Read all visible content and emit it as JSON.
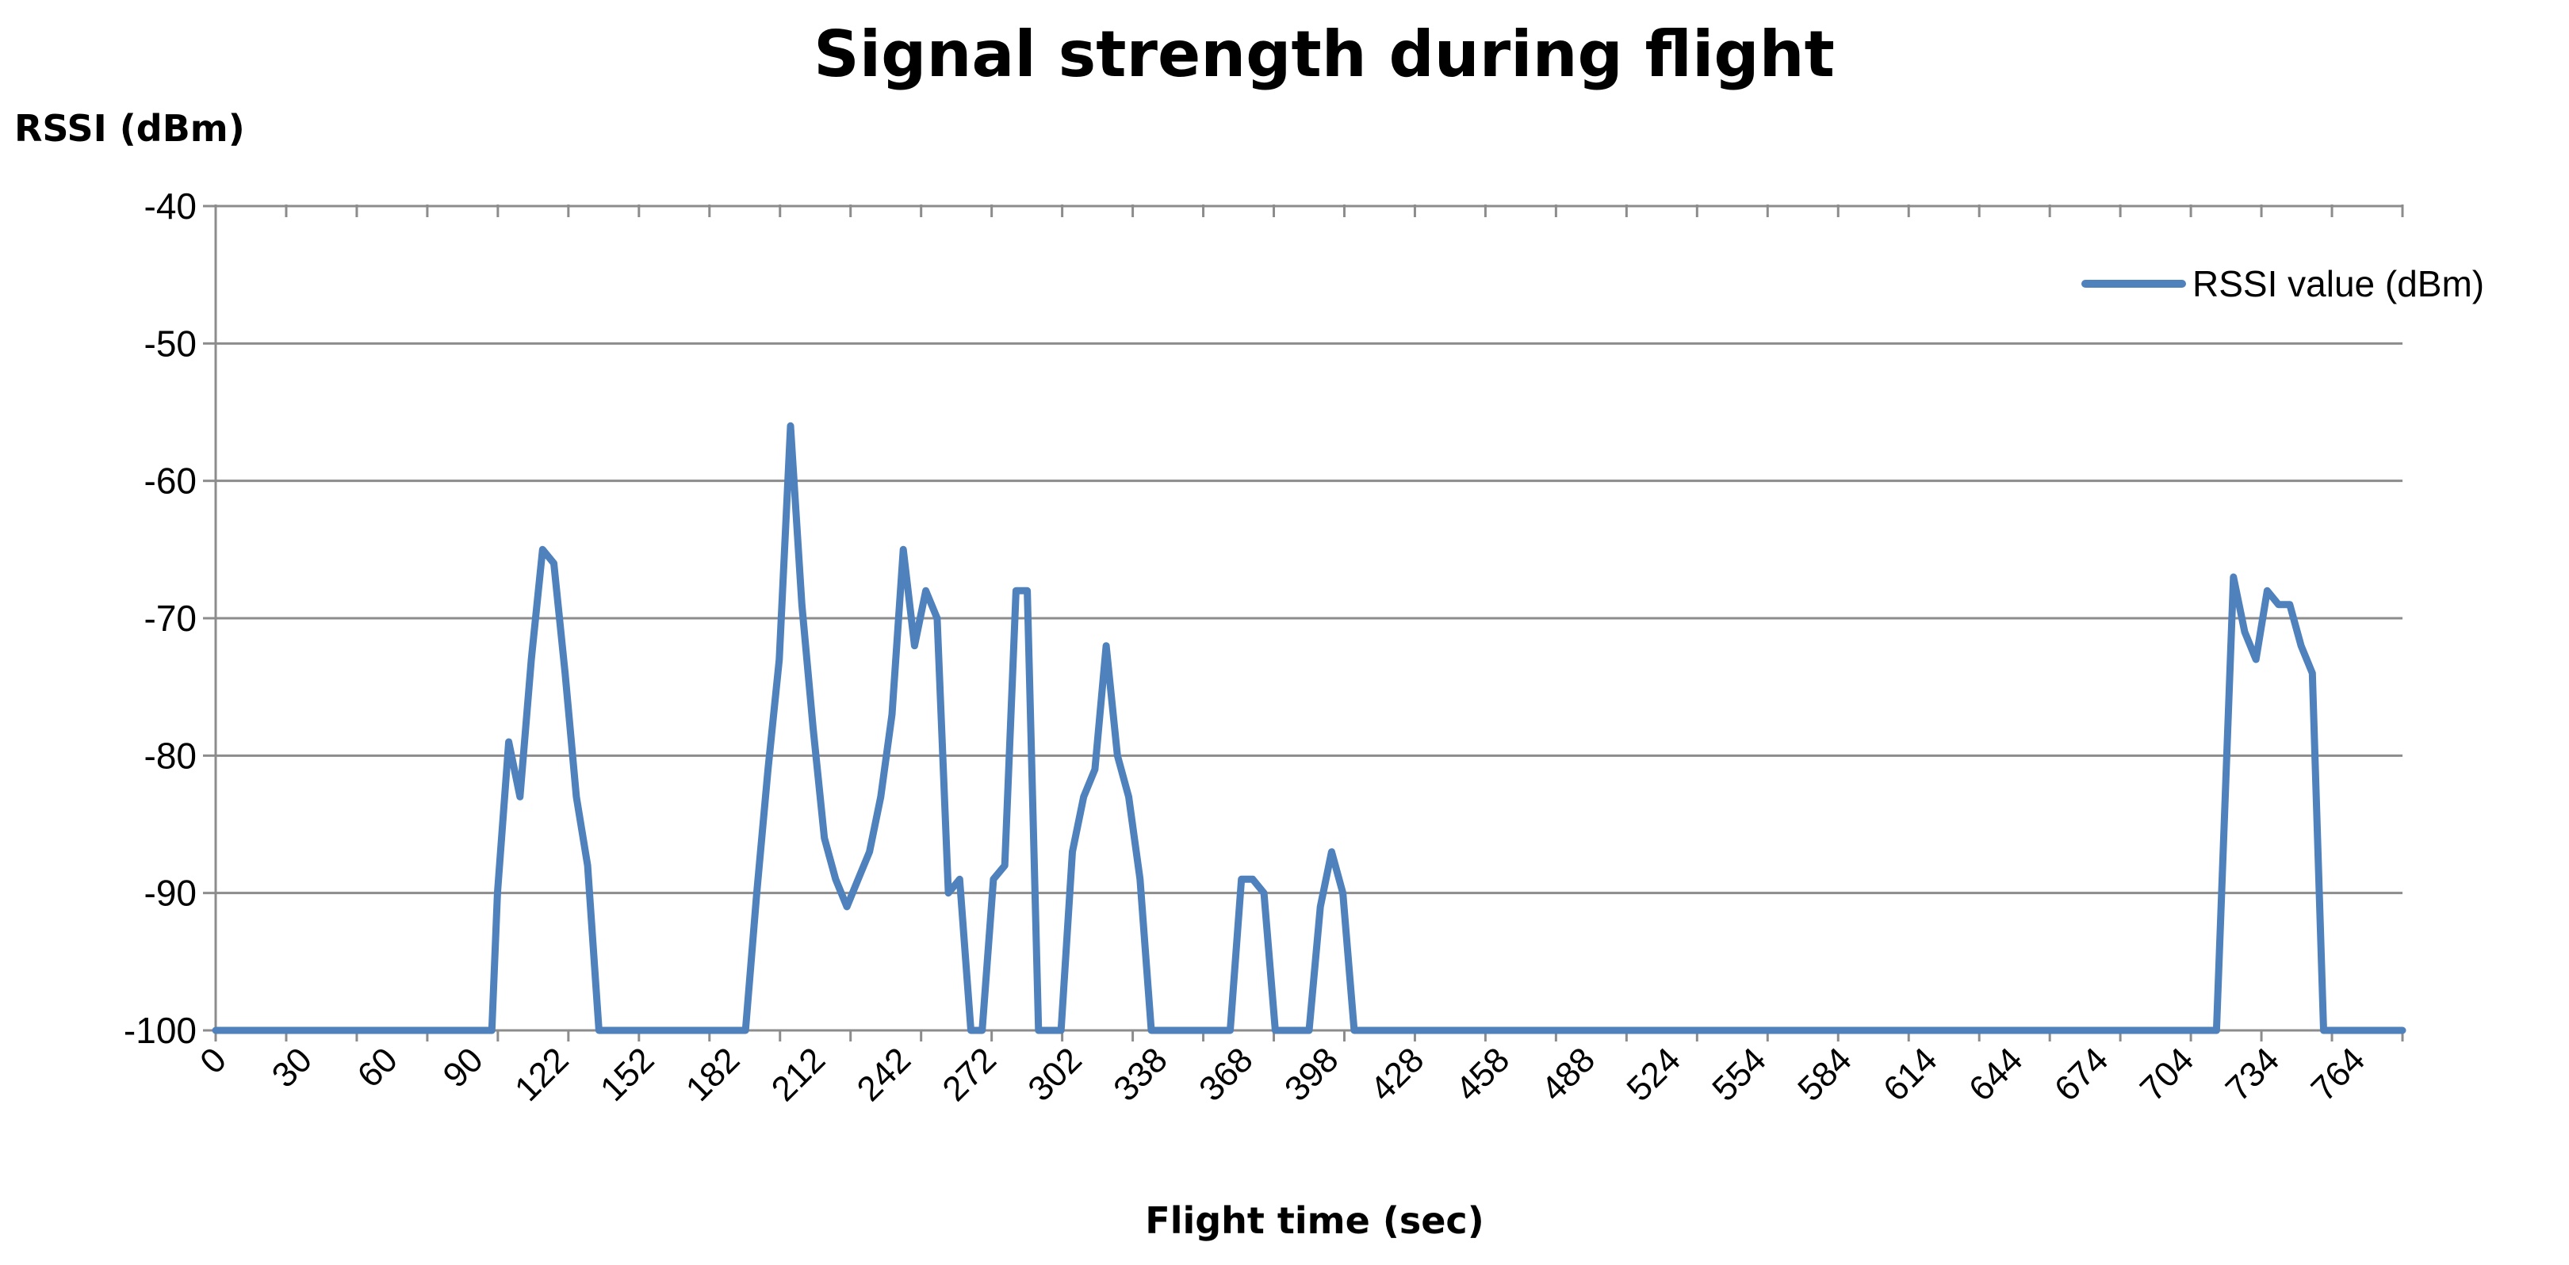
{
  "chart_data": {
    "type": "line",
    "title": "Signal strength during flight",
    "ylabel": "RSSI (dBm)",
    "xlabel": "Flight time (sec)",
    "ylim": [
      -100,
      -40
    ],
    "yticks": [
      "-40",
      "-50",
      "-60",
      "-70",
      "-80",
      "-90",
      "-100"
    ],
    "ytick_values": [
      -40,
      -50,
      -60,
      -70,
      -80,
      -90,
      -100
    ],
    "grid": true,
    "legend_position": "top-right",
    "color": "#4f81bd",
    "xtick_labels": [
      "0",
      "30",
      "60",
      "90",
      "122",
      "152",
      "182",
      "212",
      "242",
      "272",
      "302",
      "338",
      "368",
      "398",
      "428",
      "458",
      "488",
      "524",
      "554",
      "584",
      "614",
      "644",
      "674",
      "704",
      "734",
      "764"
    ],
    "series": [
      {
        "name": "RSSI value (dBm)",
        "x": [
          0,
          10,
          20,
          30,
          40,
          50,
          60,
          70,
          80,
          90,
          96,
          98,
          100,
          104,
          108,
          112,
          116,
          120,
          124,
          128,
          132,
          136,
          140,
          144,
          148,
          152,
          156,
          160,
          168,
          176,
          184,
          188,
          192,
          196,
          200,
          204,
          208,
          212,
          216,
          220,
          224,
          228,
          232,
          236,
          240,
          244,
          248,
          252,
          256,
          260,
          264,
          268,
          272,
          276,
          280,
          284,
          288,
          292,
          296,
          300,
          304,
          308,
          312,
          316,
          320,
          324,
          328,
          332,
          336,
          340,
          344,
          348,
          352,
          356,
          360,
          364,
          368,
          372,
          376,
          380,
          384,
          388,
          392,
          396,
          400,
          404,
          408,
          412,
          420,
          430,
          440,
          450,
          452,
          456,
          460,
          464,
          468,
          472,
          476,
          480,
          484,
          488,
          492,
          496,
          500,
          504,
          508,
          512,
          516,
          520,
          524,
          528,
          540,
          560,
          580,
          600,
          620,
          640,
          660,
          680,
          700,
          710,
          716,
          720,
          724,
          728,
          732,
          736,
          740,
          744,
          748,
          752,
          756,
          760,
          764,
          768,
          772,
          776
        ],
        "y": [
          -100,
          -100,
          -100,
          -100,
          -100,
          -100,
          -100,
          -100,
          -100,
          -100,
          -100,
          -100,
          -90,
          -79,
          -83,
          -73,
          -65,
          -66,
          -74,
          -83,
          -88,
          -100,
          -100,
          -100,
          -100,
          -100,
          -100,
          -100,
          -100,
          -100,
          -100,
          -100,
          -90,
          -81,
          -73,
          -56,
          -69,
          -78,
          -86,
          -89,
          -91,
          -89,
          -87,
          -83,
          -77,
          -65,
          -72,
          -68,
          -70,
          -90,
          -89,
          -100,
          -100,
          -89,
          -88,
          -68,
          -68,
          -100,
          -100,
          -100,
          -87,
          -83,
          -81,
          -72,
          -80,
          -83,
          -89,
          -100,
          -100,
          -100,
          -100,
          -100,
          -100,
          -100,
          -100,
          -89,
          -89,
          -90,
          -100,
          -100,
          -100,
          -100,
          -91,
          -87,
          -90,
          -100,
          -100,
          -100,
          -100,
          -100,
          -100,
          -100,
          -100,
          -100,
          -100,
          -100,
          -100,
          -100,
          -100,
          -100,
          -100,
          -100,
          -100,
          -100,
          -100,
          -100,
          -100,
          -100,
          -100,
          -100,
          -100,
          -100,
          -100,
          -100,
          -100,
          -100,
          -100,
          -100,
          -100,
          -100,
          -100,
          -100,
          -67,
          -71,
          -73,
          -68,
          -69,
          -69,
          -72,
          -74,
          -100,
          -100,
          -100,
          -100,
          -100,
          -100,
          -100,
          -100
        ]
      }
    ]
  }
}
